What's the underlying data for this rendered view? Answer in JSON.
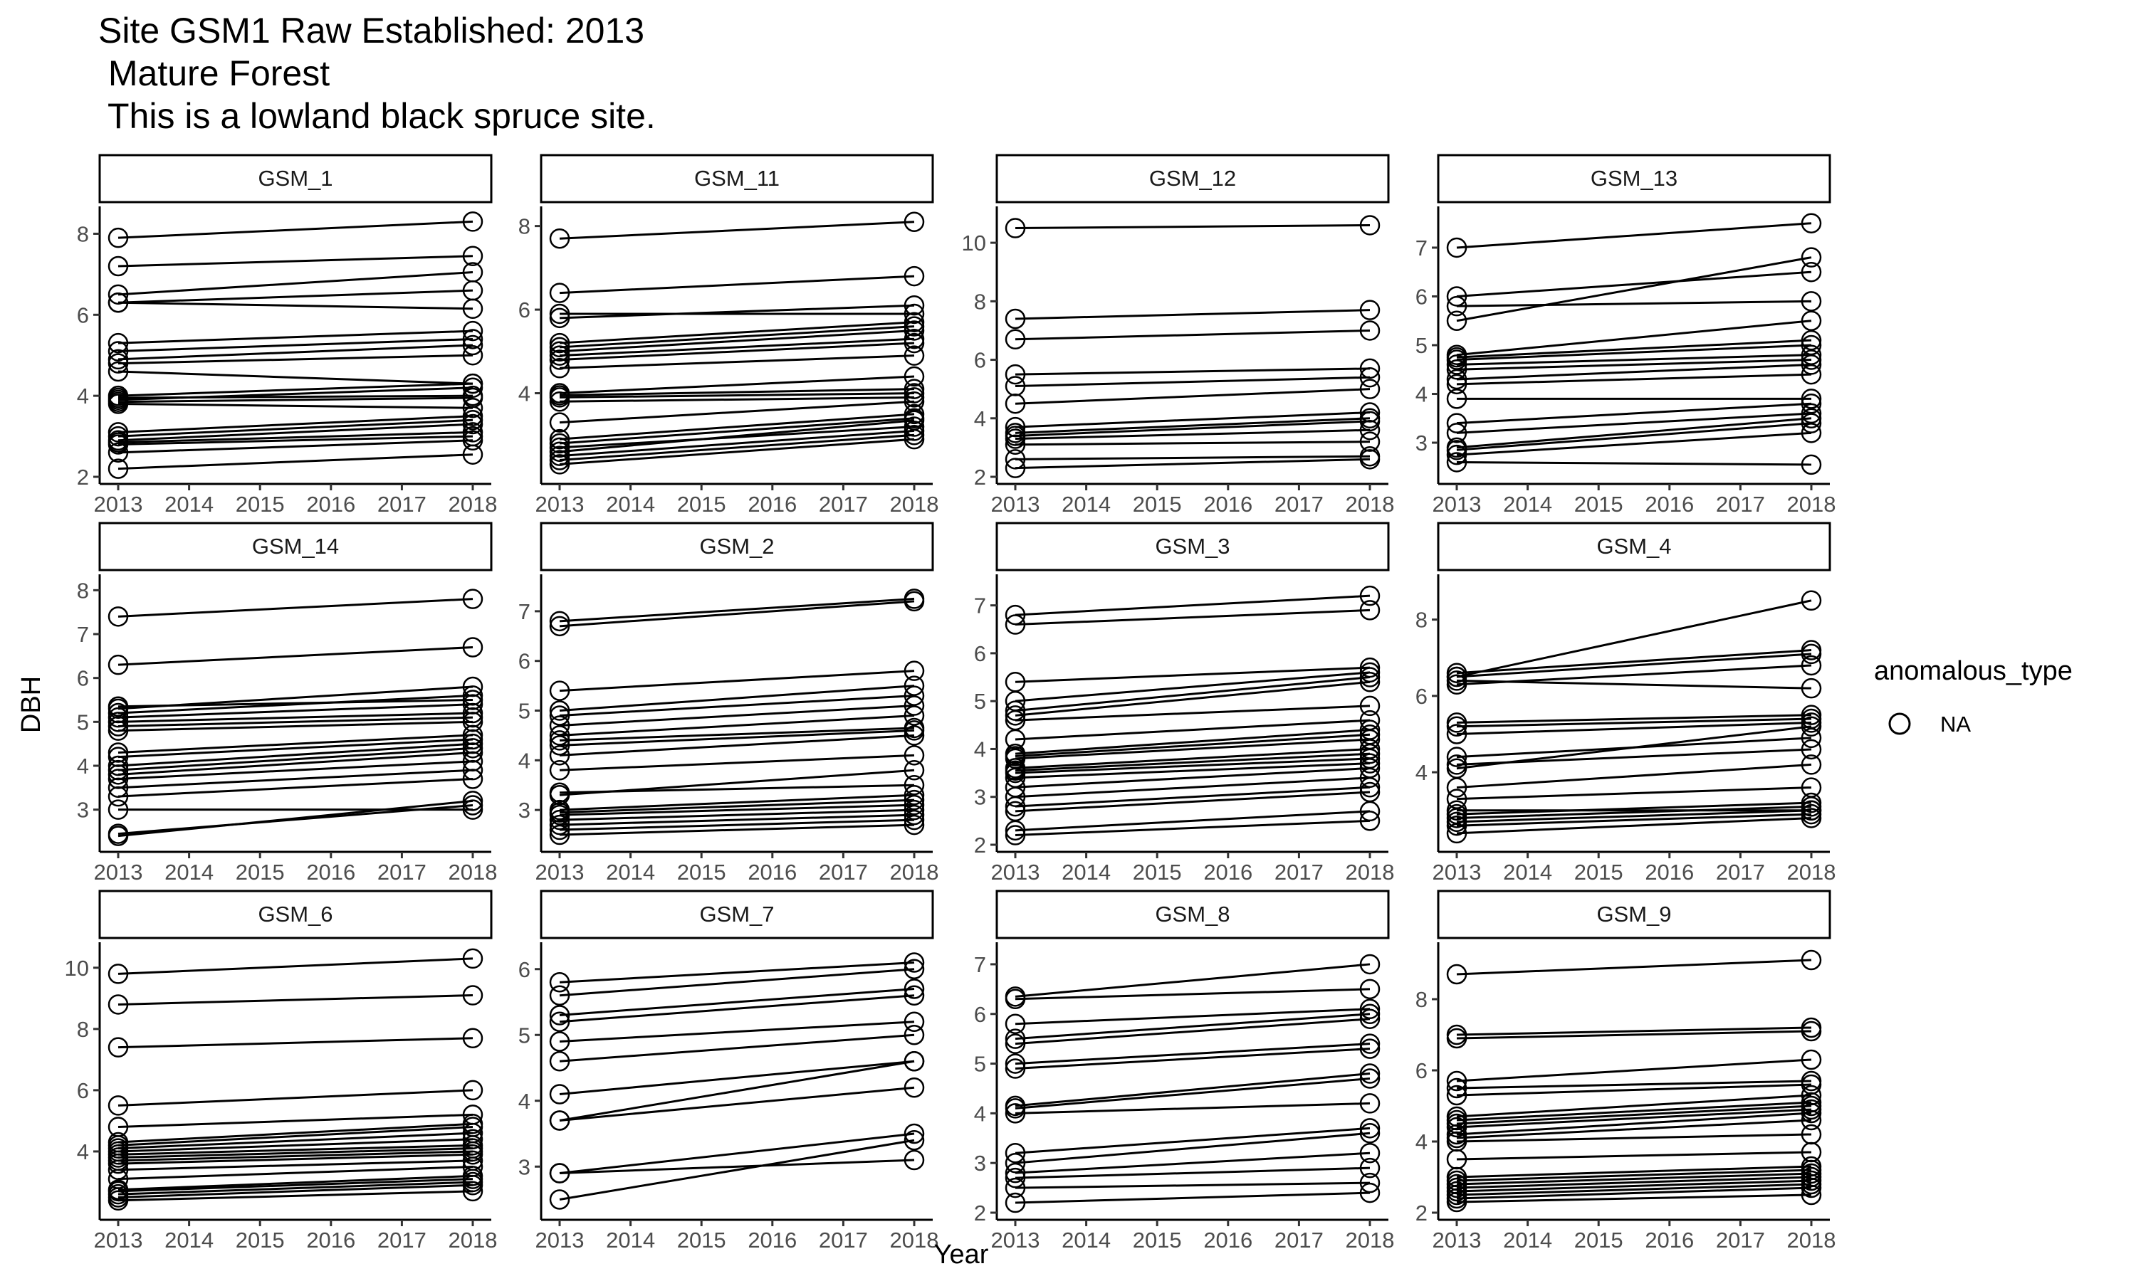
{
  "title_lines": [
    "Site GSM1 Raw Established: 2013",
    " Mature Forest",
    " This is a lowland black spruce site."
  ],
  "colors": {
    "ink": "#000000",
    "tick_text": "#4d4d4d",
    "background": "#ffffff"
  },
  "chart_data": {
    "type": "line",
    "facet_layout": {
      "rows": 3,
      "cols": 4,
      "scales": "free_y"
    },
    "xlabel": "Year",
    "ylabel": "DBH",
    "x_ticks": [
      2013,
      2014,
      2015,
      2016,
      2017,
      2018
    ],
    "xlim": [
      2013,
      2018
    ],
    "marker": "open-circle",
    "legend": {
      "title": "anomalous_type",
      "entries": [
        "NA"
      ],
      "position": "right"
    },
    "grid": false,
    "panels": [
      {
        "name": "GSM_1",
        "ylim": [
          2,
          8.5
        ],
        "yticks": [
          2,
          4,
          6,
          8
        ],
        "trees": [
          [
            2.2,
            2.55
          ],
          [
            2.6,
            2.9
          ],
          [
            2.8,
            3.0
          ],
          [
            2.85,
            3.1
          ],
          [
            2.9,
            3.3
          ],
          [
            3.0,
            3.4
          ],
          [
            3.1,
            3.5
          ],
          [
            3.8,
            3.7
          ],
          [
            3.85,
            3.95
          ],
          [
            3.9,
            4.2
          ],
          [
            3.95,
            4.0
          ],
          [
            4.0,
            4.3
          ],
          [
            4.6,
            4.3
          ],
          [
            4.8,
            5.0
          ],
          [
            4.9,
            5.25
          ],
          [
            5.1,
            5.4
          ],
          [
            5.3,
            5.6
          ],
          [
            6.3,
            6.15
          ],
          [
            6.3,
            6.6
          ],
          [
            6.5,
            7.05
          ],
          [
            7.2,
            7.45
          ],
          [
            7.9,
            8.3
          ]
        ]
      },
      {
        "name": "GSM_11",
        "ylim": [
          2,
          8.3
        ],
        "yticks": [
          4,
          6,
          8
        ],
        "trees": [
          [
            2.3,
            2.9
          ],
          [
            2.4,
            3.0
          ],
          [
            2.5,
            3.1
          ],
          [
            2.6,
            3.35
          ],
          [
            2.7,
            3.2
          ],
          [
            2.8,
            3.4
          ],
          [
            2.9,
            3.5
          ],
          [
            3.3,
            3.8
          ],
          [
            3.8,
            3.9
          ],
          [
            3.9,
            4.0
          ],
          [
            3.95,
            4.1
          ],
          [
            4.0,
            4.4
          ],
          [
            4.6,
            4.9
          ],
          [
            4.8,
            5.2
          ],
          [
            4.9,
            5.3
          ],
          [
            5.0,
            5.5
          ],
          [
            5.1,
            5.6
          ],
          [
            5.2,
            5.7
          ],
          [
            5.8,
            6.1
          ],
          [
            5.9,
            5.9
          ],
          [
            6.4,
            6.8
          ],
          [
            7.7,
            8.1
          ]
        ]
      },
      {
        "name": "GSM_12",
        "ylim": [
          2,
          11
        ],
        "yticks": [
          2,
          4,
          6,
          8,
          10
        ],
        "trees": [
          [
            2.3,
            2.6
          ],
          [
            2.6,
            2.7
          ],
          [
            3.1,
            3.2
          ],
          [
            3.3,
            3.6
          ],
          [
            3.4,
            3.9
          ],
          [
            3.5,
            4.0
          ],
          [
            3.7,
            4.2
          ],
          [
            4.5,
            5.0
          ],
          [
            5.1,
            5.4
          ],
          [
            5.5,
            5.7
          ],
          [
            6.7,
            7.0
          ],
          [
            7.4,
            7.7
          ],
          [
            10.5,
            10.6
          ]
        ]
      },
      {
        "name": "GSM_13",
        "ylim": [
          2.3,
          7.7
        ],
        "yticks": [
          3,
          4,
          5,
          6,
          7
        ],
        "trees": [
          [
            2.6,
            2.55
          ],
          [
            2.75,
            3.2
          ],
          [
            2.85,
            3.4
          ],
          [
            2.9,
            3.5
          ],
          [
            3.2,
            3.6
          ],
          [
            3.4,
            3.8
          ],
          [
            3.9,
            3.9
          ],
          [
            4.2,
            4.4
          ],
          [
            4.3,
            4.6
          ],
          [
            4.5,
            4.7
          ],
          [
            4.6,
            4.8
          ],
          [
            4.7,
            5.0
          ],
          [
            4.75,
            5.1
          ],
          [
            4.8,
            5.5
          ],
          [
            5.5,
            6.8
          ],
          [
            5.8,
            5.9
          ],
          [
            6.0,
            6.5
          ],
          [
            7.0,
            7.5
          ]
        ]
      },
      {
        "name": "GSM_14",
        "ylim": [
          2.2,
          8.2
        ],
        "yticks": [
          3,
          4,
          5,
          6,
          7,
          8
        ],
        "trees": [
          [
            2.4,
            3.2
          ],
          [
            2.45,
            3.1
          ],
          [
            3.0,
            3.0
          ],
          [
            3.3,
            3.7
          ],
          [
            3.5,
            3.9
          ],
          [
            3.7,
            4.1
          ],
          [
            3.8,
            4.3
          ],
          [
            3.9,
            4.4
          ],
          [
            4.0,
            4.5
          ],
          [
            4.2,
            4.6
          ],
          [
            4.3,
            4.7
          ],
          [
            4.8,
            5.0
          ],
          [
            4.9,
            5.1
          ],
          [
            5.0,
            5.2
          ],
          [
            5.1,
            5.4
          ],
          [
            5.2,
            5.6
          ],
          [
            5.3,
            5.8
          ],
          [
            5.35,
            5.5
          ],
          [
            6.3,
            6.7
          ],
          [
            7.4,
            7.8
          ]
        ]
      },
      {
        "name": "GSM_2",
        "ylim": [
          2.3,
          7.6
        ],
        "yticks": [
          3,
          4,
          5,
          6,
          7
        ],
        "trees": [
          [
            2.5,
            2.7
          ],
          [
            2.6,
            2.8
          ],
          [
            2.7,
            2.9
          ],
          [
            2.8,
            3.0
          ],
          [
            2.9,
            3.1
          ],
          [
            2.95,
            3.2
          ],
          [
            3.0,
            3.3
          ],
          [
            3.3,
            3.8
          ],
          [
            3.35,
            3.5
          ],
          [
            3.8,
            4.1
          ],
          [
            4.1,
            4.5
          ],
          [
            4.3,
            4.6
          ],
          [
            4.4,
            4.65
          ],
          [
            4.5,
            4.9
          ],
          [
            4.7,
            5.1
          ],
          [
            4.9,
            5.3
          ],
          [
            5.0,
            5.5
          ],
          [
            5.4,
            5.8
          ],
          [
            6.7,
            7.2
          ],
          [
            6.8,
            7.25
          ]
        ]
      },
      {
        "name": "GSM_3",
        "ylim": [
          2,
          7.5
        ],
        "yticks": [
          2,
          3,
          4,
          5,
          6,
          7
        ],
        "trees": [
          [
            2.2,
            2.5
          ],
          [
            2.3,
            2.7
          ],
          [
            2.7,
            3.1
          ],
          [
            2.8,
            3.2
          ],
          [
            3.0,
            3.4
          ],
          [
            3.2,
            3.6
          ],
          [
            3.4,
            3.7
          ],
          [
            3.5,
            3.8
          ],
          [
            3.55,
            3.9
          ],
          [
            3.6,
            4.0
          ],
          [
            3.8,
            4.2
          ],
          [
            3.85,
            4.3
          ],
          [
            3.9,
            4.4
          ],
          [
            4.2,
            4.6
          ],
          [
            4.6,
            4.9
          ],
          [
            4.7,
            5.4
          ],
          [
            4.8,
            5.5
          ],
          [
            5.0,
            5.6
          ],
          [
            5.4,
            5.7
          ],
          [
            6.6,
            6.9
          ],
          [
            6.8,
            7.2
          ]
        ]
      },
      {
        "name": "GSM_4",
        "ylim": [
          2.1,
          9
        ],
        "yticks": [
          4,
          6,
          8
        ],
        "trees": [
          [
            2.4,
            2.8
          ],
          [
            2.6,
            2.9
          ],
          [
            2.7,
            3.0
          ],
          [
            2.8,
            3.1
          ],
          [
            2.9,
            3.2
          ],
          [
            3.0,
            3.0
          ],
          [
            3.3,
            3.6
          ],
          [
            3.6,
            4.2
          ],
          [
            4.1,
            5.2
          ],
          [
            4.2,
            4.6
          ],
          [
            4.4,
            4.9
          ],
          [
            5.0,
            5.3
          ],
          [
            5.2,
            5.4
          ],
          [
            5.3,
            5.5
          ],
          [
            6.3,
            6.8
          ],
          [
            6.4,
            6.2
          ],
          [
            6.6,
            7.2
          ],
          [
            6.5,
            7.1
          ],
          [
            6.5,
            8.5
          ]
        ]
      },
      {
        "name": "GSM_6",
        "ylim": [
          2,
          10.6
        ],
        "yticks": [
          4,
          6,
          8,
          10
        ],
        "trees": [
          [
            2.4,
            2.7
          ],
          [
            2.5,
            2.9
          ],
          [
            2.6,
            3.0
          ],
          [
            2.7,
            3.1
          ],
          [
            2.75,
            3.2
          ],
          [
            3.1,
            3.5
          ],
          [
            3.4,
            3.7
          ],
          [
            3.6,
            3.9
          ],
          [
            3.7,
            4.0
          ],
          [
            3.8,
            4.1
          ],
          [
            3.9,
            4.2
          ],
          [
            4.0,
            4.4
          ],
          [
            4.1,
            4.6
          ],
          [
            4.2,
            4.8
          ],
          [
            4.3,
            4.9
          ],
          [
            4.8,
            5.2
          ],
          [
            5.5,
            6.0
          ],
          [
            7.4,
            7.7
          ],
          [
            8.8,
            9.1
          ],
          [
            9.8,
            10.3
          ]
        ]
      },
      {
        "name": "GSM_7",
        "ylim": [
          2.3,
          6.3
        ],
        "yticks": [
          3,
          4,
          5,
          6
        ],
        "trees": [
          [
            2.5,
            3.4
          ],
          [
            2.9,
            3.1
          ],
          [
            2.9,
            3.5
          ],
          [
            3.7,
            4.6
          ],
          [
            3.7,
            4.2
          ],
          [
            4.1,
            4.6
          ],
          [
            4.6,
            5.0
          ],
          [
            4.9,
            5.2
          ],
          [
            5.2,
            5.6
          ],
          [
            5.3,
            5.7
          ],
          [
            5.6,
            6.0
          ],
          [
            5.8,
            6.1
          ]
        ]
      },
      {
        "name": "GSM_8",
        "ylim": [
          2,
          7.3
        ],
        "yticks": [
          2,
          3,
          4,
          5,
          6,
          7
        ],
        "trees": [
          [
            2.2,
            2.4
          ],
          [
            2.5,
            2.6
          ],
          [
            2.7,
            2.9
          ],
          [
            2.8,
            3.2
          ],
          [
            3.0,
            3.6
          ],
          [
            3.2,
            3.7
          ],
          [
            4.0,
            4.2
          ],
          [
            4.1,
            4.7
          ],
          [
            4.15,
            4.8
          ],
          [
            4.9,
            5.3
          ],
          [
            5.0,
            5.4
          ],
          [
            5.4,
            5.9
          ],
          [
            5.5,
            6.0
          ],
          [
            5.8,
            6.1
          ],
          [
            6.3,
            6.5
          ],
          [
            6.35,
            7.0
          ]
        ]
      },
      {
        "name": "GSM_9",
        "ylim": [
          2,
          9.4
        ],
        "yticks": [
          2,
          4,
          6,
          8
        ],
        "trees": [
          [
            2.3,
            2.5
          ],
          [
            2.4,
            2.7
          ],
          [
            2.5,
            2.8
          ],
          [
            2.6,
            2.9
          ],
          [
            2.7,
            3.0
          ],
          [
            2.8,
            3.1
          ],
          [
            2.9,
            3.2
          ],
          [
            3.0,
            3.3
          ],
          [
            3.5,
            3.7
          ],
          [
            4.0,
            4.2
          ],
          [
            4.1,
            4.6
          ],
          [
            4.2,
            4.8
          ],
          [
            4.4,
            4.9
          ],
          [
            4.5,
            5.0
          ],
          [
            4.6,
            5.1
          ],
          [
            4.7,
            5.3
          ],
          [
            5.3,
            5.6
          ],
          [
            5.5,
            5.7
          ],
          [
            5.7,
            6.3
          ],
          [
            6.9,
            7.1
          ],
          [
            7.0,
            7.2
          ],
          [
            8.7,
            9.1
          ]
        ]
      }
    ]
  }
}
